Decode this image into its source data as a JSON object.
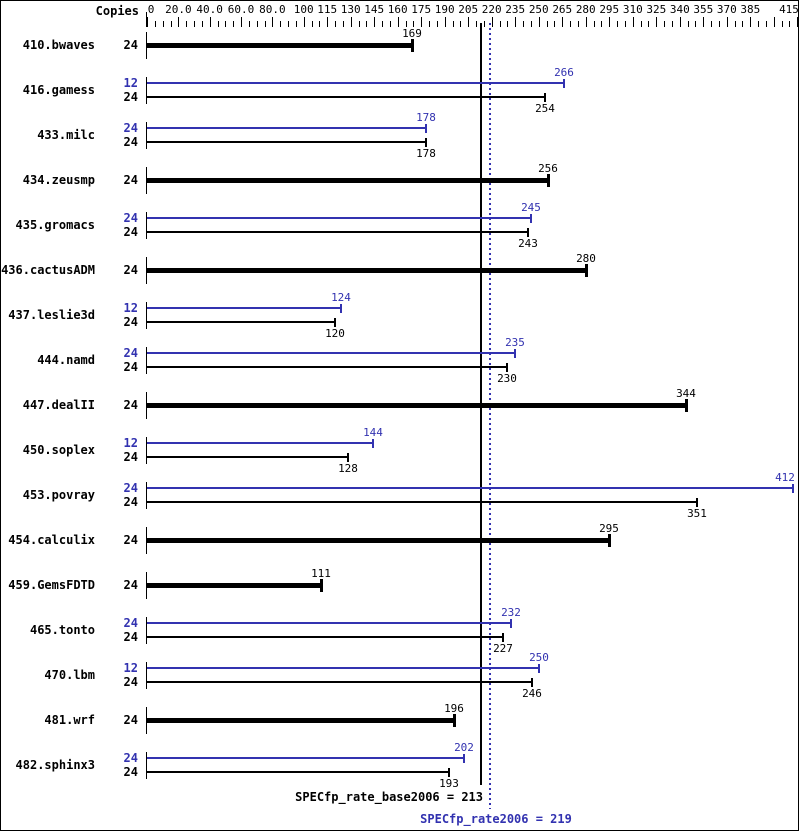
{
  "window": {
    "background": "#ffffff",
    "border_color": "#000000"
  },
  "chart": {
    "copies_header": "Copies",
    "colors": {
      "peak": "#3232b0",
      "base": "#000000"
    },
    "axis": {
      "minor_step": 5,
      "range": [
        0,
        415
      ],
      "major_ticks": [
        {
          "value": 0,
          "label": "0"
        },
        {
          "value": 20,
          "label": "20.0"
        },
        {
          "value": 40,
          "label": "40.0"
        },
        {
          "value": 60,
          "label": "60.0"
        },
        {
          "value": 80,
          "label": "80.0"
        },
        {
          "value": 100,
          "label": "100"
        },
        {
          "value": 115,
          "label": "115"
        },
        {
          "value": 130,
          "label": "130"
        },
        {
          "value": 145,
          "label": "145"
        },
        {
          "value": 160,
          "label": "160"
        },
        {
          "value": 175,
          "label": "175"
        },
        {
          "value": 190,
          "label": "190"
        },
        {
          "value": 205,
          "label": "205"
        },
        {
          "value": 220,
          "label": "220"
        },
        {
          "value": 235,
          "label": "235"
        },
        {
          "value": 250,
          "label": "250"
        },
        {
          "value": 265,
          "label": "265"
        },
        {
          "value": 280,
          "label": "280"
        },
        {
          "value": 295,
          "label": "295"
        },
        {
          "value": 310,
          "label": "310"
        },
        {
          "value": 325,
          "label": "325"
        },
        {
          "value": 340,
          "label": "340"
        },
        {
          "value": 355,
          "label": "355"
        },
        {
          "value": 370,
          "label": "370"
        },
        {
          "value": 385,
          "label": "385"
        },
        {
          "value": 400,
          "label": ""
        },
        {
          "value": 415,
          "label": "415"
        }
      ]
    }
  },
  "chart_data": {
    "type": "bar",
    "orientation": "horizontal",
    "title": "",
    "xlabel": "",
    "ylabel": "",
    "xlim": [
      0,
      415
    ],
    "grid": false,
    "legend_position": "bottom",
    "benchmarks": [
      {
        "name": "410.bwaves",
        "bars": [
          {
            "copies": 24,
            "series": "base",
            "value": 169
          }
        ]
      },
      {
        "name": "416.gamess",
        "bars": [
          {
            "copies": 12,
            "series": "peak",
            "value": 266
          },
          {
            "copies": 24,
            "series": "base",
            "value": 254
          }
        ]
      },
      {
        "name": "433.milc",
        "bars": [
          {
            "copies": 24,
            "series": "peak",
            "value": 178
          },
          {
            "copies": 24,
            "series": "base",
            "value": 178
          }
        ]
      },
      {
        "name": "434.zeusmp",
        "bars": [
          {
            "copies": 24,
            "series": "base",
            "value": 256
          }
        ]
      },
      {
        "name": "435.gromacs",
        "bars": [
          {
            "copies": 24,
            "series": "peak",
            "value": 245
          },
          {
            "copies": 24,
            "series": "base",
            "value": 243
          }
        ]
      },
      {
        "name": "436.cactusADM",
        "bars": [
          {
            "copies": 24,
            "series": "base",
            "value": 280
          }
        ]
      },
      {
        "name": "437.leslie3d",
        "bars": [
          {
            "copies": 12,
            "series": "peak",
            "value": 124
          },
          {
            "copies": 24,
            "series": "base",
            "value": 120
          }
        ]
      },
      {
        "name": "444.namd",
        "bars": [
          {
            "copies": 24,
            "series": "peak",
            "value": 235
          },
          {
            "copies": 24,
            "series": "base",
            "value": 230
          }
        ]
      },
      {
        "name": "447.dealII",
        "bars": [
          {
            "copies": 24,
            "series": "base",
            "value": 344
          }
        ]
      },
      {
        "name": "450.soplex",
        "bars": [
          {
            "copies": 12,
            "series": "peak",
            "value": 144
          },
          {
            "copies": 24,
            "series": "base",
            "value": 128
          }
        ]
      },
      {
        "name": "453.povray",
        "bars": [
          {
            "copies": 24,
            "series": "peak",
            "value": 412
          },
          {
            "copies": 24,
            "series": "base",
            "value": 351
          }
        ]
      },
      {
        "name": "454.calculix",
        "bars": [
          {
            "copies": 24,
            "series": "base",
            "value": 295
          }
        ]
      },
      {
        "name": "459.GemsFDTD",
        "bars": [
          {
            "copies": 24,
            "series": "base",
            "value": 111
          }
        ]
      },
      {
        "name": "465.tonto",
        "bars": [
          {
            "copies": 24,
            "series": "peak",
            "value": 232
          },
          {
            "copies": 24,
            "series": "base",
            "value": 227
          }
        ]
      },
      {
        "name": "470.lbm",
        "bars": [
          {
            "copies": 12,
            "series": "peak",
            "value": 250
          },
          {
            "copies": 24,
            "series": "base",
            "value": 246
          }
        ]
      },
      {
        "name": "481.wrf",
        "bars": [
          {
            "copies": 24,
            "series": "base",
            "value": 196
          }
        ]
      },
      {
        "name": "482.sphinx3",
        "bars": [
          {
            "copies": 24,
            "series": "peak",
            "value": 202
          },
          {
            "copies": 24,
            "series": "base",
            "value": 193
          }
        ]
      }
    ],
    "reference_lines": [
      {
        "name": "base",
        "label": "SPECfp_rate_base2006 = 213",
        "value": 213,
        "style": "solid",
        "color": "#000000"
      },
      {
        "name": "peak",
        "label": "SPECfp_rate2006 = 219",
        "value": 219,
        "style": "dotted",
        "color": "#3232b0"
      }
    ]
  }
}
